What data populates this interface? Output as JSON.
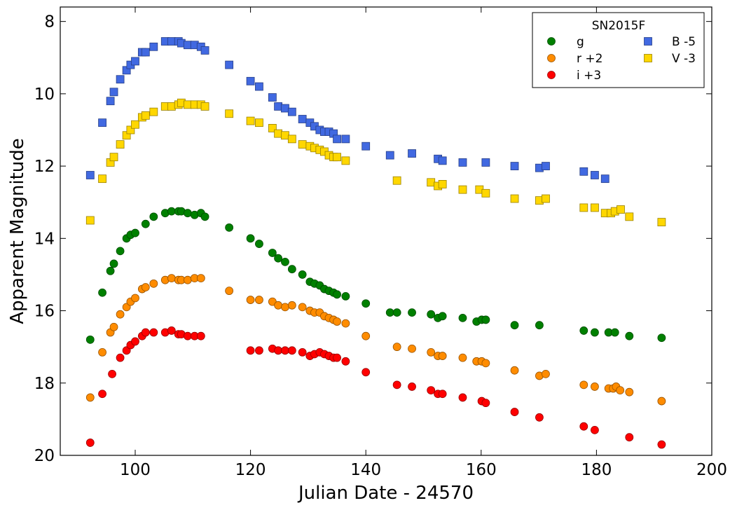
{
  "chart_data": {
    "type": "scatter",
    "xlabel": "Julian Date - 24570",
    "ylabel": "Apparent Magnitude",
    "xlim": [
      87,
      200
    ],
    "ylim": [
      20,
      7.6
    ],
    "y_inverted": true,
    "xticks": [
      100,
      120,
      140,
      160,
      180,
      200
    ],
    "yticks": [
      8,
      10,
      12,
      14,
      16,
      18,
      20
    ],
    "grid": false,
    "legend": {
      "title": "SN2015F",
      "position": "top-right",
      "columns": [
        [
          "g",
          "r +2",
          "i +3"
        ],
        [
          "B -5",
          "V -3"
        ]
      ]
    },
    "series": [
      {
        "name": "g",
        "marker": "circle",
        "color": "#008000",
        "points": [
          [
            92.2,
            16.8
          ],
          [
            94.3,
            15.5
          ],
          [
            95.7,
            14.9
          ],
          [
            96.3,
            14.7
          ],
          [
            97.4,
            14.35
          ],
          [
            98.5,
            14.0
          ],
          [
            99.2,
            13.9
          ],
          [
            100.0,
            13.85
          ],
          [
            101.8,
            13.6
          ],
          [
            103.2,
            13.4
          ],
          [
            105.2,
            13.3
          ],
          [
            106.3,
            13.25
          ],
          [
            107.5,
            13.25
          ],
          [
            108.0,
            13.25
          ],
          [
            109.1,
            13.3
          ],
          [
            110.3,
            13.35
          ],
          [
            111.4,
            13.3
          ],
          [
            112.1,
            13.4
          ],
          [
            116.3,
            13.7
          ],
          [
            120.0,
            14.0
          ],
          [
            121.5,
            14.15
          ],
          [
            123.8,
            14.4
          ],
          [
            124.8,
            14.55
          ],
          [
            126.0,
            14.65
          ],
          [
            127.2,
            14.85
          ],
          [
            129.0,
            15.0
          ],
          [
            130.3,
            15.2
          ],
          [
            131.1,
            15.25
          ],
          [
            132.0,
            15.3
          ],
          [
            132.8,
            15.4
          ],
          [
            133.6,
            15.45
          ],
          [
            134.4,
            15.5
          ],
          [
            135.0,
            15.55
          ],
          [
            136.5,
            15.6
          ],
          [
            140.0,
            15.8
          ],
          [
            144.2,
            16.05
          ],
          [
            145.4,
            16.05
          ],
          [
            148.0,
            16.05
          ],
          [
            151.3,
            16.1
          ],
          [
            152.5,
            16.2
          ],
          [
            153.3,
            16.15
          ],
          [
            156.8,
            16.2
          ],
          [
            159.2,
            16.3
          ],
          [
            160.1,
            16.25
          ],
          [
            160.8,
            16.25
          ],
          [
            165.8,
            16.4
          ],
          [
            170.1,
            16.4
          ],
          [
            177.8,
            16.55
          ],
          [
            179.7,
            16.6
          ],
          [
            182.1,
            16.6
          ],
          [
            183.2,
            16.6
          ],
          [
            185.7,
            16.7
          ],
          [
            191.3,
            16.75
          ]
        ]
      },
      {
        "name": "r +2",
        "marker": "circle",
        "color": "#ff8c00",
        "points": [
          [
            92.2,
            18.4
          ],
          [
            94.3,
            17.15
          ],
          [
            95.7,
            16.6
          ],
          [
            96.3,
            16.45
          ],
          [
            97.4,
            16.1
          ],
          [
            98.5,
            15.9
          ],
          [
            99.2,
            15.75
          ],
          [
            100.0,
            15.65
          ],
          [
            101.2,
            15.4
          ],
          [
            101.8,
            15.35
          ],
          [
            103.2,
            15.25
          ],
          [
            105.2,
            15.15
          ],
          [
            106.3,
            15.1
          ],
          [
            107.5,
            15.15
          ],
          [
            108.0,
            15.15
          ],
          [
            109.1,
            15.15
          ],
          [
            110.3,
            15.1
          ],
          [
            111.4,
            15.1
          ],
          [
            116.3,
            15.45
          ],
          [
            120.0,
            15.7
          ],
          [
            121.5,
            15.7
          ],
          [
            123.8,
            15.75
          ],
          [
            124.8,
            15.85
          ],
          [
            126.0,
            15.9
          ],
          [
            127.2,
            15.85
          ],
          [
            129.0,
            15.9
          ],
          [
            130.3,
            16.0
          ],
          [
            131.1,
            16.05
          ],
          [
            132.0,
            16.05
          ],
          [
            132.8,
            16.15
          ],
          [
            133.6,
            16.2
          ],
          [
            134.4,
            16.25
          ],
          [
            135.0,
            16.3
          ],
          [
            136.5,
            16.35
          ],
          [
            140.0,
            16.7
          ],
          [
            145.4,
            17.0
          ],
          [
            148.0,
            17.05
          ],
          [
            151.3,
            17.15
          ],
          [
            152.5,
            17.25
          ],
          [
            153.3,
            17.25
          ],
          [
            156.8,
            17.3
          ],
          [
            159.2,
            17.4
          ],
          [
            160.1,
            17.4
          ],
          [
            160.8,
            17.45
          ],
          [
            165.8,
            17.65
          ],
          [
            170.1,
            17.8
          ],
          [
            171.2,
            17.75
          ],
          [
            177.8,
            18.05
          ],
          [
            179.7,
            18.1
          ],
          [
            182.1,
            18.15
          ],
          [
            182.9,
            18.15
          ],
          [
            183.4,
            18.1
          ],
          [
            184.1,
            18.2
          ],
          [
            185.7,
            18.25
          ],
          [
            191.3,
            18.5
          ]
        ]
      },
      {
        "name": "i +3",
        "marker": "circle",
        "color": "#ff0000",
        "points": [
          [
            92.2,
            19.65
          ],
          [
            94.3,
            18.3
          ],
          [
            96.0,
            17.75
          ],
          [
            97.4,
            17.3
          ],
          [
            98.5,
            17.1
          ],
          [
            99.2,
            16.95
          ],
          [
            100.0,
            16.85
          ],
          [
            101.2,
            16.7
          ],
          [
            101.8,
            16.6
          ],
          [
            103.2,
            16.6
          ],
          [
            105.2,
            16.6
          ],
          [
            106.3,
            16.55
          ],
          [
            107.5,
            16.65
          ],
          [
            108.0,
            16.65
          ],
          [
            109.1,
            16.7
          ],
          [
            110.3,
            16.7
          ],
          [
            111.4,
            16.7
          ],
          [
            120.0,
            17.1
          ],
          [
            121.5,
            17.1
          ],
          [
            123.8,
            17.05
          ],
          [
            124.8,
            17.1
          ],
          [
            126.0,
            17.1
          ],
          [
            127.2,
            17.1
          ],
          [
            129.0,
            17.15
          ],
          [
            130.3,
            17.25
          ],
          [
            131.1,
            17.2
          ],
          [
            132.0,
            17.15
          ],
          [
            132.8,
            17.2
          ],
          [
            133.6,
            17.25
          ],
          [
            134.4,
            17.3
          ],
          [
            135.0,
            17.3
          ],
          [
            136.5,
            17.4
          ],
          [
            140.0,
            17.7
          ],
          [
            145.4,
            18.05
          ],
          [
            148.0,
            18.1
          ],
          [
            151.3,
            18.2
          ],
          [
            152.5,
            18.3
          ],
          [
            153.3,
            18.3
          ],
          [
            156.8,
            18.4
          ],
          [
            160.1,
            18.5
          ],
          [
            160.8,
            18.55
          ],
          [
            165.8,
            18.8
          ],
          [
            170.1,
            18.95
          ],
          [
            177.8,
            19.2
          ],
          [
            179.7,
            19.3
          ],
          [
            185.7,
            19.5
          ],
          [
            191.3,
            19.7
          ]
        ]
      },
      {
        "name": "B -5",
        "marker": "square",
        "color": "#4169e1",
        "points": [
          [
            92.2,
            12.25
          ],
          [
            94.3,
            10.8
          ],
          [
            95.7,
            10.2
          ],
          [
            96.3,
            9.95
          ],
          [
            97.4,
            9.6
          ],
          [
            98.5,
            9.35
          ],
          [
            99.2,
            9.2
          ],
          [
            100.0,
            9.1
          ],
          [
            101.2,
            8.85
          ],
          [
            101.8,
            8.85
          ],
          [
            103.2,
            8.7
          ],
          [
            105.2,
            8.55
          ],
          [
            106.3,
            8.55
          ],
          [
            107.5,
            8.55
          ],
          [
            108.0,
            8.6
          ],
          [
            109.1,
            8.65
          ],
          [
            110.3,
            8.65
          ],
          [
            111.4,
            8.7
          ],
          [
            112.1,
            8.8
          ],
          [
            116.3,
            9.2
          ],
          [
            120.0,
            9.65
          ],
          [
            121.5,
            9.8
          ],
          [
            123.8,
            10.1
          ],
          [
            124.8,
            10.35
          ],
          [
            126.0,
            10.4
          ],
          [
            127.2,
            10.5
          ],
          [
            129.0,
            10.7
          ],
          [
            130.3,
            10.8
          ],
          [
            131.1,
            10.9
          ],
          [
            132.0,
            11.0
          ],
          [
            132.8,
            11.05
          ],
          [
            133.6,
            11.05
          ],
          [
            134.4,
            11.1
          ],
          [
            135.0,
            11.25
          ],
          [
            136.5,
            11.25
          ],
          [
            140.0,
            11.45
          ],
          [
            144.2,
            11.7
          ],
          [
            148.0,
            11.65
          ],
          [
            152.5,
            11.8
          ],
          [
            153.3,
            11.85
          ],
          [
            156.8,
            11.9
          ],
          [
            160.8,
            11.9
          ],
          [
            165.8,
            12.0
          ],
          [
            170.1,
            12.05
          ],
          [
            171.2,
            12.0
          ],
          [
            177.8,
            12.15
          ],
          [
            179.7,
            12.25
          ],
          [
            181.5,
            12.35
          ]
        ]
      },
      {
        "name": "V -3",
        "marker": "square",
        "color": "#ffd700",
        "points": [
          [
            92.2,
            13.5
          ],
          [
            94.3,
            12.35
          ],
          [
            95.7,
            11.9
          ],
          [
            96.3,
            11.75
          ],
          [
            97.4,
            11.4
          ],
          [
            98.5,
            11.15
          ],
          [
            99.2,
            11.0
          ],
          [
            100.0,
            10.85
          ],
          [
            101.2,
            10.65
          ],
          [
            101.8,
            10.6
          ],
          [
            103.2,
            10.5
          ],
          [
            105.2,
            10.35
          ],
          [
            106.3,
            10.35
          ],
          [
            107.5,
            10.3
          ],
          [
            108.0,
            10.25
          ],
          [
            109.1,
            10.3
          ],
          [
            110.3,
            10.3
          ],
          [
            111.4,
            10.3
          ],
          [
            112.1,
            10.35
          ],
          [
            116.3,
            10.55
          ],
          [
            120.0,
            10.75
          ],
          [
            121.5,
            10.8
          ],
          [
            123.8,
            10.95
          ],
          [
            124.8,
            11.1
          ],
          [
            126.0,
            11.15
          ],
          [
            127.2,
            11.25
          ],
          [
            129.0,
            11.4
          ],
          [
            130.3,
            11.45
          ],
          [
            131.1,
            11.5
          ],
          [
            132.0,
            11.55
          ],
          [
            132.8,
            11.6
          ],
          [
            133.6,
            11.7
          ],
          [
            134.4,
            11.75
          ],
          [
            135.0,
            11.75
          ],
          [
            136.5,
            11.85
          ],
          [
            145.4,
            12.4
          ],
          [
            151.3,
            12.45
          ],
          [
            152.5,
            12.55
          ],
          [
            153.3,
            12.5
          ],
          [
            156.8,
            12.65
          ],
          [
            159.7,
            12.65
          ],
          [
            160.8,
            12.75
          ],
          [
            165.8,
            12.9
          ],
          [
            170.1,
            12.95
          ],
          [
            171.2,
            12.9
          ],
          [
            177.8,
            13.15
          ],
          [
            179.7,
            13.15
          ],
          [
            181.5,
            13.3
          ],
          [
            182.5,
            13.3
          ],
          [
            183.2,
            13.25
          ],
          [
            184.2,
            13.2
          ],
          [
            185.7,
            13.4
          ],
          [
            191.3,
            13.55
          ]
        ]
      }
    ]
  }
}
